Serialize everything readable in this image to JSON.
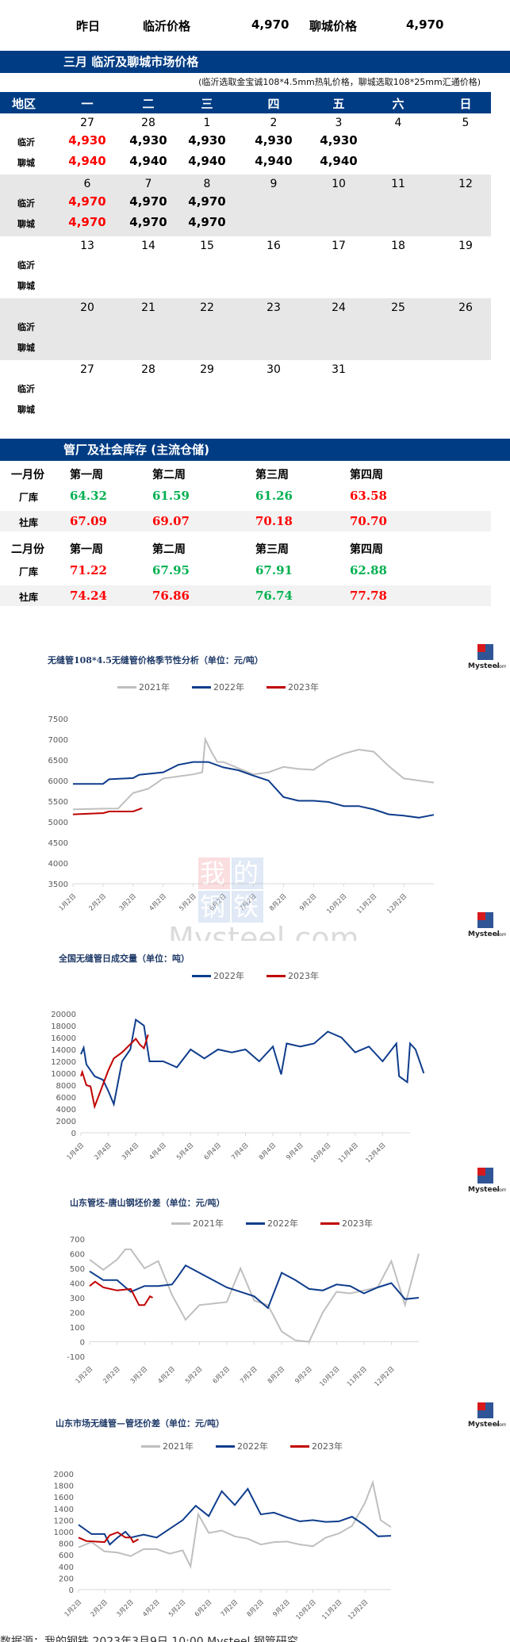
{
  "summary": {
    "label": "昨日",
    "linyi_label": "临沂价格",
    "linyi_value": "4,970",
    "liaocheng_label": "聊城价格",
    "liaocheng_value": "4,970"
  },
  "market": {
    "title": "三月  临沂及聊城市场价格",
    "note": "(临沂选取金宝诚108*4.5mm热轧价格，聊城选取108*25mm汇通价格)",
    "headers": [
      "地区",
      "一",
      "二",
      "三",
      "四",
      "五",
      "六",
      "日"
    ],
    "row_labels": [
      "临沂",
      "聊城"
    ],
    "weeks": [
      {
        "days": [
          "27",
          "28",
          "1",
          "2",
          "3",
          "4",
          "5"
        ],
        "linyi": [
          "4,930",
          "4,930",
          "4,930",
          "4,930",
          "4,930",
          "",
          ""
        ],
        "liaocheng": [
          "4,940",
          "4,940",
          "4,940",
          "4,940",
          "4,940",
          "",
          ""
        ]
      },
      {
        "days": [
          "6",
          "7",
          "8",
          "9",
          "10",
          "11",
          "12"
        ],
        "linyi": [
          "4,970",
          "4,970",
          "4,970",
          "",
          "",
          "",
          ""
        ],
        "liaocheng": [
          "4,970",
          "4,970",
          "4,970",
          "",
          "",
          "",
          ""
        ]
      },
      {
        "days": [
          "13",
          "14",
          "15",
          "16",
          "17",
          "18",
          "19"
        ],
        "linyi": [
          "",
          "",
          "",
          "",
          "",
          "",
          ""
        ],
        "liaocheng": [
          "",
          "",
          "",
          "",
          "",
          "",
          ""
        ]
      },
      {
        "days": [
          "20",
          "21",
          "22",
          "23",
          "24",
          "25",
          "26"
        ],
        "linyi": [
          "",
          "",
          "",
          "",
          "",
          "",
          ""
        ],
        "liaocheng": [
          "",
          "",
          "",
          "",
          "",
          "",
          ""
        ]
      },
      {
        "days": [
          "27",
          "28",
          "29",
          "30",
          "31",
          "",
          ""
        ],
        "linyi": [
          "",
          "",
          "",
          "",
          "",
          "",
          ""
        ],
        "liaocheng": [
          "",
          "",
          "",
          "",
          "",
          "",
          ""
        ]
      }
    ]
  },
  "inventory": {
    "title": "管厂及社会库存 (主流仓储)",
    "months": [
      {
        "label": "一月份",
        "weeks": [
          "第一周",
          "第二周",
          "第三周",
          "第四周"
        ],
        "factory": {
          "label": "厂库",
          "values": [
            "64.32",
            "61.59",
            "61.26",
            "63.58"
          ],
          "colors": [
            "green",
            "green",
            "green",
            "red"
          ]
        },
        "social": {
          "label": "社库",
          "values": [
            "67.09",
            "69.07",
            "70.18",
            "70.70"
          ],
          "colors": [
            "red",
            "red",
            "red",
            "red"
          ]
        }
      },
      {
        "label": "二月份",
        "weeks": [
          "第一周",
          "第二周",
          "第三周",
          "第四周"
        ],
        "factory": {
          "label": "厂库",
          "values": [
            "71.22",
            "67.95",
            "67.91",
            "62.88"
          ],
          "colors": [
            "red",
            "green",
            "green",
            "green"
          ]
        },
        "social": {
          "label": "社库",
          "values": [
            "74.24",
            "76.86",
            "76.74",
            "77.78"
          ],
          "colors": [
            "red",
            "red",
            "green",
            "red"
          ]
        }
      }
    ]
  },
  "colors": {
    "navy": "#003c84",
    "red": "#ff0000",
    "green": "#00b050",
    "s2021": "#bfbfbf",
    "s2022": "#0f3d8c",
    "s2023": "#c00000"
  },
  "logo": {
    "line1": "我的",
    "line2": "钢铁",
    "brand": "Mysteel.com"
  },
  "watermark": {
    "cn1": "我",
    "cn2": "的",
    "cn3": "钢",
    "cn4": "铁",
    "en": "Mysteel.com"
  },
  "footer": {
    "text": "数据源：我的钢铁                 2023年3月9日 10:00                 Mysteel                 钢管研究"
  },
  "chart_data": [
    {
      "type": "line",
      "title": "无缝管108*4.5无缝管价格季节性分析（单位：元/吨）",
      "legend": [
        "2021年",
        "2022年",
        "2023年"
      ],
      "x_ticks": [
        "1月2日",
        "2月2日",
        "3月2日",
        "4月2日",
        "5月2日",
        "6月2日",
        "7月2日",
        "8月2日",
        "9月2日",
        "10月2日",
        "11月2日",
        "12月2日"
      ],
      "ylim": [
        3500,
        7500
      ],
      "y_ticks": [
        "7500",
        "7000",
        "6500",
        "6000",
        "5500",
        "5000",
        "4500",
        "4000",
        "3500"
      ],
      "series": [
        {
          "name": "2021年",
          "x": [
            0,
            0.5,
            1,
            1.5,
            1.6,
            2,
            2.5,
            3,
            3.5,
            4,
            4.3,
            4.4,
            4.6,
            4.8,
            5,
            5.5,
            6,
            6.5,
            7,
            7.5,
            8,
            8.5,
            9,
            9.5,
            10,
            10.5,
            11,
            11.5,
            12
          ],
          "values": [
            5300,
            5310,
            5320,
            5320,
            5400,
            5700,
            5800,
            6050,
            6100,
            6150,
            6200,
            7000,
            6700,
            6450,
            6450,
            6300,
            6150,
            6200,
            6330,
            6280,
            6260,
            6500,
            6650,
            6750,
            6700,
            6350,
            6050,
            6000,
            5950
          ]
        },
        {
          "name": "2022年",
          "x": [
            0,
            1,
            1.2,
            2,
            2.2,
            3,
            3.5,
            4,
            4.5,
            5,
            5.5,
            6,
            6.5,
            7,
            7.5,
            8,
            8.5,
            9,
            9.5,
            10,
            10.5,
            11,
            11.5,
            12
          ],
          "values": [
            5920,
            5920,
            6030,
            6060,
            6140,
            6200,
            6380,
            6450,
            6450,
            6320,
            6250,
            6120,
            6000,
            5600,
            5510,
            5510,
            5480,
            5380,
            5380,
            5300,
            5180,
            5150,
            5100,
            5170
          ]
        },
        {
          "name": "2023年",
          "x": [
            0,
            1,
            1.2,
            2,
            2.3
          ],
          "values": [
            5180,
            5210,
            5250,
            5250,
            5330
          ]
        }
      ]
    },
    {
      "type": "line",
      "title": "全国无缝管日成交量（单位：吨）",
      "legend": [
        "2022年",
        "2023年"
      ],
      "x_ticks": [
        "1月4日",
        "2月4日",
        "3月4日",
        "4月4日",
        "5月4日",
        "6月4日",
        "7月4日",
        "8月4日",
        "9月4日",
        "10月4日",
        "11月4日",
        "12月4日"
      ],
      "ylim": [
        0,
        20000
      ],
      "y_ticks": [
        "20000",
        "18000",
        "16000",
        "14000",
        "12000",
        "10000",
        "8000",
        "6000",
        "4000",
        "2000",
        "0"
      ],
      "series": [
        {
          "name": "2022年",
          "x": [
            0,
            0.1,
            0.2,
            0.5,
            0.8,
            1,
            1.2,
            1.5,
            1.8,
            2,
            2.3,
            2.5,
            3,
            3.5,
            4,
            4.5,
            5,
            5.5,
            6,
            6.5,
            7,
            7.3,
            7.5,
            8,
            8.5,
            9,
            9.5,
            10,
            10.5,
            11,
            11.5,
            11.6,
            11.9,
            12,
            12.2,
            12.5
          ],
          "values": [
            13200,
            14300,
            11500,
            9500,
            8900,
            7000,
            4800,
            12000,
            14000,
            19000,
            18000,
            12000,
            12000,
            11000,
            14000,
            12500,
            14000,
            13500,
            14000,
            12000,
            14500,
            9800,
            15000,
            14500,
            15000,
            17000,
            16000,
            13500,
            14500,
            12000,
            15000,
            9500,
            8500,
            15000,
            14000,
            10000
          ]
        },
        {
          "name": "2023年",
          "x": [
            0,
            0.05,
            0.2,
            0.35,
            0.5,
            1,
            1.2,
            1.5,
            2,
            2.15,
            2.3,
            2.45
          ],
          "values": [
            9500,
            10200,
            8000,
            7800,
            4400,
            10500,
            12500,
            13500,
            15800,
            14800,
            14200,
            16500
          ]
        }
      ]
    },
    {
      "type": "line",
      "title": "山东管坯-唐山钢坯价差（单位：元/吨）",
      "legend": [
        "2021年",
        "2022年",
        "2023年"
      ],
      "x_ticks": [
        "1月2日",
        "2月2日",
        "3月2日",
        "4月2日",
        "5月2日",
        "6月2日",
        "7月2日",
        "8月2日",
        "9月2日",
        "10月2日",
        "11月2日",
        "12月2日"
      ],
      "ylim": [
        -100,
        700
      ],
      "y_ticks": [
        "700",
        "600",
        "500",
        "400",
        "300",
        "200",
        "100",
        "0",
        "-100"
      ],
      "series": [
        {
          "name": "2021年",
          "x": [
            0,
            0.5,
            1,
            1.3,
            1.5,
            2,
            2.5,
            3,
            3.5,
            4,
            4.5,
            5,
            5.5,
            6,
            6.5,
            7,
            7.5,
            8,
            8.5,
            9,
            9.5,
            10,
            10.5,
            11,
            11.5,
            12
          ],
          "values": [
            560,
            490,
            560,
            630,
            630,
            500,
            550,
            320,
            150,
            250,
            260,
            270,
            500,
            280,
            250,
            70,
            10,
            0,
            200,
            340,
            330,
            350,
            370,
            550,
            250,
            600
          ]
        },
        {
          "name": "2022年",
          "x": [
            0,
            0.5,
            1,
            1.5,
            2,
            2.5,
            3,
            3.2,
            3.5,
            4,
            4.5,
            5,
            5.5,
            6,
            6.5,
            7,
            7.5,
            8,
            8.5,
            9,
            9.5,
            10,
            10.5,
            11,
            11.5,
            12
          ],
          "values": [
            480,
            420,
            420,
            340,
            380,
            380,
            390,
            440,
            520,
            470,
            420,
            370,
            340,
            310,
            230,
            470,
            420,
            360,
            350,
            390,
            380,
            330,
            370,
            400,
            290,
            300
          ]
        },
        {
          "name": "2023年",
          "x": [
            0,
            0.2,
            0.5,
            1,
            1.5,
            1.8,
            2,
            2.2,
            2.3
          ],
          "values": [
            380,
            410,
            370,
            350,
            360,
            250,
            250,
            310,
            300
          ]
        }
      ]
    },
    {
      "type": "line",
      "title": "山东市场无缝管—管坯价差（单位：元/吨）",
      "legend": [
        "2021年",
        "2022年",
        "2023年"
      ],
      "x_ticks": [
        "1月2日",
        "2月2日",
        "3月2日",
        "4月2日",
        "5月2日",
        "6月2日",
        "7月2日",
        "8月2日",
        "9月2日",
        "10月2日",
        "11月2日",
        "12月2日"
      ],
      "ylim": [
        0,
        2000
      ],
      "y_ticks": [
        "2000",
        "1800",
        "1600",
        "1400",
        "1200",
        "1000",
        "800",
        "600",
        "400",
        "200",
        "0"
      ],
      "series": [
        {
          "name": "2021年",
          "x": [
            0,
            0.5,
            1,
            1.5,
            2,
            2.5,
            3,
            3.5,
            4,
            4.3,
            4.6,
            5,
            5.5,
            6,
            6.5,
            7,
            7.5,
            8,
            8.5,
            9,
            9.5,
            10,
            10.5,
            11,
            11.3,
            11.6,
            12
          ],
          "values": [
            730,
            820,
            660,
            640,
            580,
            700,
            700,
            620,
            680,
            400,
            1300,
            980,
            1020,
            920,
            880,
            780,
            820,
            830,
            780,
            750,
            900,
            970,
            1100,
            1500,
            1850,
            1200,
            1080
          ]
        },
        {
          "name": "2022年",
          "x": [
            0,
            0.5,
            1,
            1.2,
            1.5,
            1.8,
            2,
            2.5,
            3,
            3.5,
            4,
            4.5,
            5,
            5.5,
            6,
            6.5,
            7,
            7.5,
            8,
            8.5,
            9,
            9.5,
            10,
            10.5,
            11,
            11.5,
            12
          ],
          "values": [
            1120,
            960,
            960,
            780,
            900,
            1000,
            900,
            950,
            900,
            1050,
            1200,
            1450,
            1270,
            1700,
            1460,
            1740,
            1300,
            1330,
            1250,
            1180,
            1200,
            1170,
            1180,
            1260,
            1110,
            920,
            930
          ]
        },
        {
          "name": "2023年",
          "x": [
            0,
            0.3,
            1,
            1.2,
            1.5,
            1.8,
            2,
            2.1,
            2.3
          ],
          "values": [
            900,
            840,
            820,
            940,
            990,
            900,
            900,
            820,
            870
          ]
        }
      ]
    }
  ]
}
